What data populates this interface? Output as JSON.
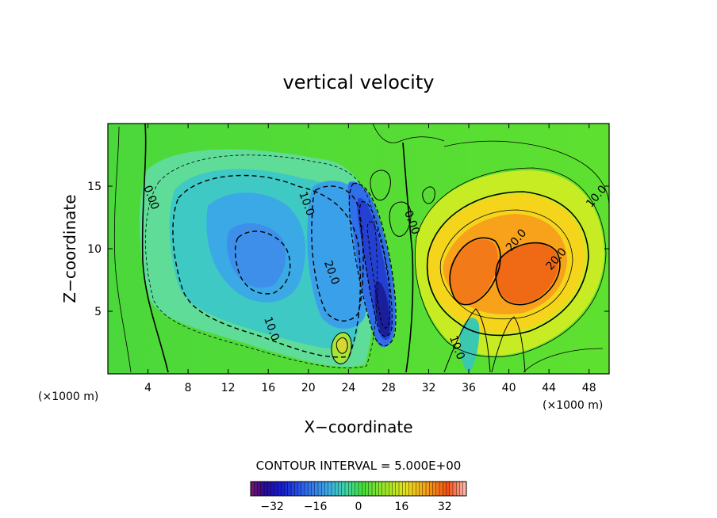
{
  "chart_data": {
    "type": "heatmap",
    "title": "vertical velocity",
    "xlabel": "X−coordinate",
    "ylabel": "Z−coordinate",
    "x_unit": "(×1000 m)",
    "y_unit": "(×1000 m)",
    "xlim": [
      0,
      50
    ],
    "ylim": [
      0,
      20
    ],
    "x_ticks": [
      4,
      8,
      12,
      16,
      20,
      24,
      28,
      32,
      36,
      40,
      44,
      48
    ],
    "y_ticks": [
      5,
      10,
      15
    ],
    "contour_interval_text": "CONTOUR INTERVAL = 5.000E+00",
    "colorbar": {
      "range": [
        -40,
        40
      ],
      "ticks": [
        -32,
        -16,
        0,
        16,
        32
      ],
      "tick_labels": [
        "−32",
        "−16",
        "0",
        "16",
        "32"
      ]
    },
    "contour_labels": [
      {
        "text": "0.00",
        "x": 4,
        "z": 14
      },
      {
        "text": "10.0",
        "x": 19.5,
        "z": 13.5
      },
      {
        "text": "20.0",
        "x": 22,
        "z": 8
      },
      {
        "text": "10.0",
        "x": 16,
        "z": 3.5
      },
      {
        "text": "0.00",
        "x": 30,
        "z": 12
      },
      {
        "text": "10.0",
        "x": 49,
        "z": 14
      },
      {
        "text": "20.0",
        "x": 41,
        "z": 10.5
      },
      {
        "text": "20.0",
        "x": 45,
        "z": 9
      },
      {
        "text": "10.0",
        "x": 34.5,
        "z": 2
      }
    ],
    "features": [
      {
        "sign": "negative",
        "x": 14.5,
        "z": 10.5,
        "peak": -18
      },
      {
        "sign": "negative",
        "x": 22.5,
        "z": 7,
        "peak": -14
      },
      {
        "sign": "negative",
        "x": 26.5,
        "z": 9.5,
        "peak": -30
      },
      {
        "sign": "negative",
        "x": 27.7,
        "z": 3.5,
        "peak": -34
      },
      {
        "sign": "positive",
        "x": 39,
        "z": 8,
        "peak": 26
      },
      {
        "sign": "positive",
        "x": 43,
        "z": 8.5,
        "peak": 27
      },
      {
        "sign": "positive",
        "x": 24,
        "z": 2.5,
        "peak": 8
      }
    ]
  }
}
